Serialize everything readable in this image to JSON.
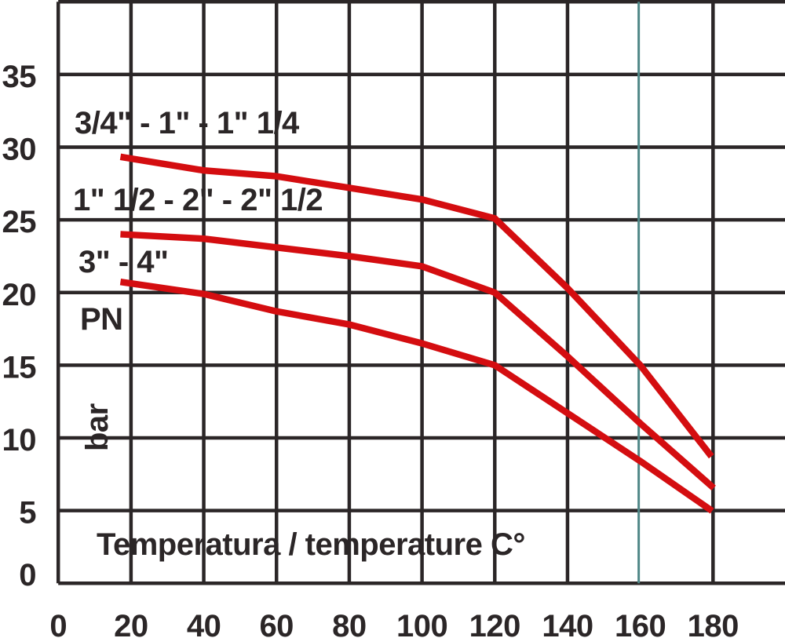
{
  "chart_data": {
    "type": "line",
    "title": "",
    "xlabel": "Temperatura / temperature C°",
    "pn_label": "PN",
    "unit_label": "bar",
    "xlim": [
      0,
      200
    ],
    "ylim": [
      0,
      40
    ],
    "x_ticks": [
      "0",
      "20",
      "40",
      "60",
      "80",
      "100",
      "120",
      "140",
      "160",
      "180"
    ],
    "x_tick_values": [
      0,
      20,
      40,
      60,
      80,
      100,
      120,
      140,
      160,
      180
    ],
    "y_ticks": [
      "35",
      "30",
      "25",
      "20",
      "15",
      "10",
      "5",
      "0"
    ],
    "y_tick_values": [
      35,
      30,
      25,
      20,
      15,
      10,
      5,
      0
    ],
    "x_gridline_step": 20,
    "y_gridline_step": 5,
    "grid": true,
    "legend_position": "on-chart-labels",
    "highlight_gridline": {
      "axis": "x",
      "value": 160,
      "color": "#4f8787",
      "width": 3
    },
    "axis_color": "#2b2627",
    "text_color": "#2b2627",
    "curve_color": "#d40d10",
    "series": [
      {
        "name": "3/4\" - 1\" - 1\" 1/4",
        "x": [
          18,
          40,
          60,
          80,
          100,
          120,
          140,
          160,
          179
        ],
        "y": [
          29.3,
          28.4,
          28.0,
          27.2,
          26.4,
          25.1,
          20.3,
          15.0,
          8.9
        ]
      },
      {
        "name": "1\" 1/2 - 2\" - 2\" 1/2",
        "x": [
          18,
          40,
          60,
          80,
          100,
          120,
          140,
          160,
          179.5
        ],
        "y": [
          24.0,
          23.7,
          23.1,
          22.5,
          21.8,
          20.0,
          15.6,
          11.0,
          6.7
        ]
      },
      {
        "name": "3\" - 4\"",
        "x": [
          18,
          40,
          60,
          80,
          100,
          120,
          140,
          160,
          179
        ],
        "y": [
          20.7,
          19.9,
          18.7,
          17.8,
          16.5,
          15.0,
          11.7,
          8.4,
          5.1
        ]
      }
    ]
  }
}
